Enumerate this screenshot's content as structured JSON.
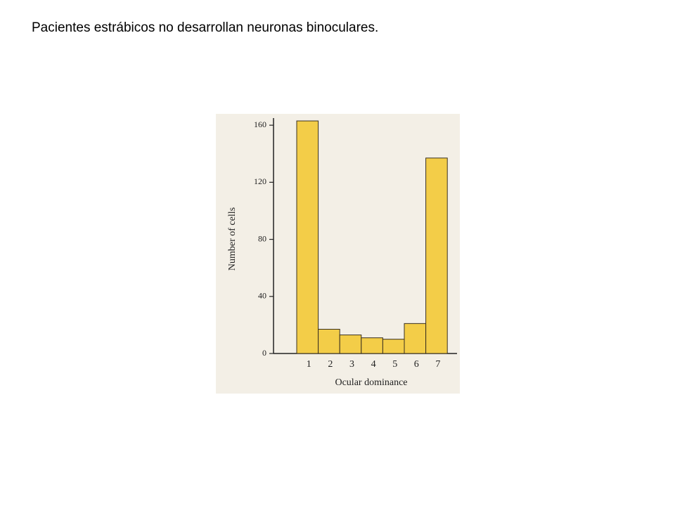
{
  "header": {
    "title": "Pacientes estrábicos no desarrollan neuronas binoculares."
  },
  "chart_data": {
    "type": "bar",
    "x_label": "Ocular dominance",
    "y_label": "Number of cells",
    "categories": [
      "1",
      "2",
      "3",
      "4",
      "5",
      "6",
      "7"
    ],
    "values": [
      163,
      17,
      13,
      11,
      10,
      21,
      137
    ],
    "color": "#f3cd48",
    "ylim": [
      0,
      165
    ],
    "yticks": [
      0,
      40,
      80,
      120,
      160
    ]
  }
}
